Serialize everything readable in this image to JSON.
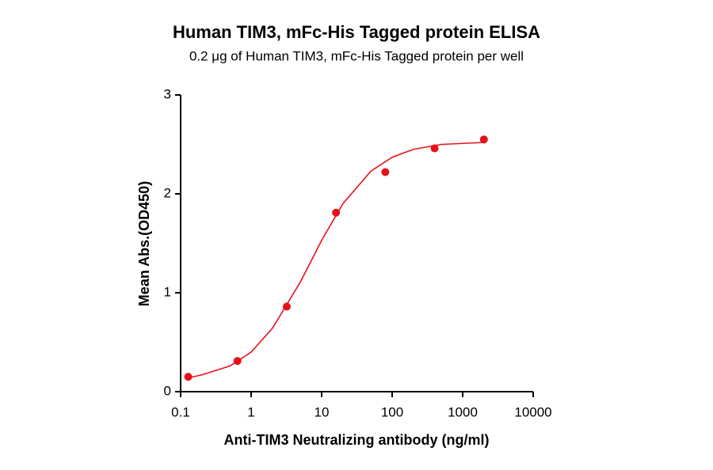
{
  "chart_data": {
    "type": "scatter",
    "title": "Human TIM3, mFc-His Tagged protein ELISA",
    "subtitle": "0.2 μg of Human TIM3, mFc-His Tagged protein per well",
    "x_label": "Anti-TIM3 Neutralizing antibody (ng/ml)",
    "y_label": "Mean Abs.(OD450)",
    "x_scale": "log",
    "color": "#e8101a",
    "x": [
      0.128,
      0.64,
      3.2,
      16,
      80,
      400,
      2000
    ],
    "values": [
      0.15,
      0.31,
      0.86,
      1.81,
      2.22,
      2.46,
      2.55
    ],
    "curve": {
      "x": [
        0.13,
        0.2,
        0.5,
        1,
        2,
        5,
        10,
        20,
        50,
        100,
        200,
        500,
        1000,
        2000
      ],
      "values": [
        0.14,
        0.17,
        0.26,
        0.4,
        0.64,
        1.11,
        1.53,
        1.9,
        2.23,
        2.37,
        2.45,
        2.5,
        2.51,
        2.52
      ]
    },
    "xlim": [
      0.1,
      10000
    ],
    "xticks": [
      0.1,
      1,
      10,
      100,
      1000,
      10000
    ],
    "ylim": [
      0,
      3
    ],
    "yticks": [
      0,
      1,
      2,
      3
    ]
  }
}
